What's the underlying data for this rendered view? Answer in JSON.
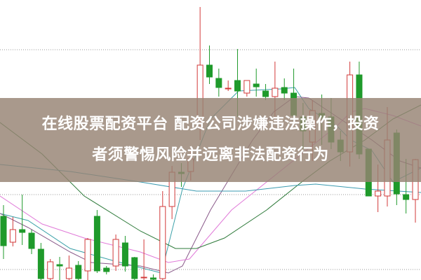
{
  "headline": {
    "line1": "在线股票配资平台 配资公司涉嫌违法操作，投资",
    "line2": "者须警惕风险并远离非法配资行为"
  },
  "chart_data": {
    "type": "candlestick",
    "title": "",
    "xlabel": "",
    "ylabel": "",
    "ylim": [
      0,
      400
    ],
    "grid": "horizontal dotted",
    "legend": "none",
    "colors": {
      "up": "#d23a3a",
      "down": "#1f9a2b",
      "ma_short": "#3aa0a8",
      "ma_mid": "#8a5a8a",
      "ma_long": "#e07ad8",
      "ma_60": "#2e7a3a",
      "ma_120": "#3a9ab0"
    },
    "candles": [
      {
        "o": 91,
        "h": 107,
        "l": 30,
        "c": 49
      },
      {
        "o": 54,
        "h": 90,
        "l": 48,
        "c": 72
      },
      {
        "o": 72,
        "h": 122,
        "l": 50,
        "c": 68
      },
      {
        "o": 67,
        "h": 72,
        "l": 37,
        "c": 45
      },
      {
        "o": 44,
        "h": 53,
        "l": 0,
        "c": 2
      },
      {
        "o": 2,
        "h": 30,
        "l": 0,
        "c": 26
      },
      {
        "o": 22,
        "h": 33,
        "l": 0,
        "c": 20
      },
      {
        "o": 2,
        "h": 35,
        "l": 0,
        "c": 17
      },
      {
        "o": 21,
        "h": 27,
        "l": 0,
        "c": 2
      },
      {
        "o": 13,
        "h": 60,
        "l": 0,
        "c": 58
      },
      {
        "o": 91,
        "h": 100,
        "l": 10,
        "c": 13
      },
      {
        "o": 17,
        "h": 20,
        "l": 8,
        "c": 12
      },
      {
        "o": 20,
        "h": 65,
        "l": 13,
        "c": 58
      },
      {
        "o": 53,
        "h": 63,
        "l": 12,
        "c": 20
      },
      {
        "o": 32,
        "h": 33,
        "l": 0,
        "c": 2
      },
      {
        "o": 3,
        "h": 58,
        "l": 0,
        "c": 4
      },
      {
        "o": 3,
        "h": 8,
        "l": 0,
        "c": 1
      },
      {
        "o": 2,
        "h": 127,
        "l": 0,
        "c": 105
      },
      {
        "o": 105,
        "h": 163,
        "l": 87,
        "c": 154
      },
      {
        "o": 154,
        "h": 167,
        "l": 133,
        "c": 152
      },
      {
        "o": 155,
        "h": 187,
        "l": 142,
        "c": 173
      },
      {
        "o": 230,
        "h": 390,
        "l": 200,
        "c": 307
      },
      {
        "o": 307,
        "h": 335,
        "l": 280,
        "c": 290
      },
      {
        "o": 288,
        "h": 302,
        "l": 262,
        "c": 275
      },
      {
        "o": 274,
        "h": 285,
        "l": 270,
        "c": 274
      },
      {
        "o": 285,
        "h": 330,
        "l": 233,
        "c": 270
      },
      {
        "o": 267,
        "h": 285,
        "l": 262,
        "c": 285
      },
      {
        "o": 280,
        "h": 302,
        "l": 262,
        "c": 276
      },
      {
        "o": 270,
        "h": 280,
        "l": 257,
        "c": 262
      },
      {
        "o": 262,
        "h": 312,
        "l": 230,
        "c": 274
      },
      {
        "o": 275,
        "h": 288,
        "l": 257,
        "c": 267
      },
      {
        "o": 267,
        "h": 302,
        "l": 227,
        "c": 235
      },
      {
        "o": 233,
        "h": 253,
        "l": 187,
        "c": 213
      },
      {
        "o": 197,
        "h": 257,
        "l": 170,
        "c": 242
      },
      {
        "o": 238,
        "h": 265,
        "l": 193,
        "c": 232
      },
      {
        "o": 233,
        "h": 260,
        "l": 187,
        "c": 197
      },
      {
        "o": 200,
        "h": 213,
        "l": 170,
        "c": 183
      },
      {
        "o": 183,
        "h": 312,
        "l": 162,
        "c": 293
      },
      {
        "o": 293,
        "h": 312,
        "l": 173,
        "c": 180
      },
      {
        "o": 187,
        "h": 187,
        "l": 120,
        "c": 120
      },
      {
        "o": 120,
        "h": 165,
        "l": 97,
        "c": 127
      },
      {
        "o": 120,
        "h": 247,
        "l": 105,
        "c": 200
      },
      {
        "o": 210,
        "h": 215,
        "l": 107,
        "c": 123
      },
      {
        "o": 122,
        "h": 173,
        "l": 95,
        "c": 115
      },
      {
        "o": 115,
        "h": 173,
        "l": 82,
        "c": 172
      }
    ],
    "moving_averages": [
      {
        "key": "ma_short",
        "points": [
          [
            0,
            95
          ],
          [
            40,
            85
          ],
          [
            100,
            45
          ],
          [
            160,
            28
          ],
          [
            230,
            10
          ],
          [
            260,
            130
          ],
          [
            300,
            230
          ],
          [
            340,
            270
          ],
          [
            400,
            273
          ],
          [
            420,
            275
          ],
          [
            440,
            245
          ],
          [
            480,
            220
          ],
          [
            500,
            200
          ],
          [
            530,
            185
          ],
          [
            560,
            140
          ],
          [
            600,
            160
          ]
        ]
      },
      {
        "key": "ma_mid",
        "points": [
          [
            0,
            95
          ],
          [
            40,
            75
          ],
          [
            100,
            40
          ],
          [
            130,
            25
          ],
          [
            200,
            20
          ],
          [
            240,
            10
          ],
          [
            260,
            20
          ],
          [
            300,
            100
          ],
          [
            360,
            200
          ],
          [
            390,
            240
          ],
          [
            420,
            262
          ],
          [
            440,
            260
          ],
          [
            470,
            240
          ],
          [
            500,
            220
          ],
          [
            530,
            200
          ],
          [
            570,
            170
          ],
          [
            600,
            160
          ]
        ]
      },
      {
        "key": "ma_long",
        "points": [
          [
            0,
            120
          ],
          [
            60,
            80
          ],
          [
            120,
            60
          ],
          [
            200,
            40
          ],
          [
            240,
            25
          ],
          [
            270,
            30
          ],
          [
            330,
            100
          ],
          [
            380,
            140
          ],
          [
            430,
            180
          ],
          [
            480,
            220
          ],
          [
            500,
            240
          ],
          [
            520,
            245
          ],
          [
            560,
            235
          ],
          [
            600,
            220
          ]
        ]
      },
      {
        "key": "ma_60",
        "points": [
          [
            0,
            225
          ],
          [
            60,
            180
          ],
          [
            120,
            120
          ],
          [
            200,
            70
          ],
          [
            250,
            45
          ],
          [
            280,
            45
          ],
          [
            320,
            60
          ],
          [
            380,
            100
          ],
          [
            430,
            140
          ],
          [
            470,
            170
          ],
          [
            520,
            200
          ],
          [
            560,
            230
          ],
          [
            600,
            250
          ]
        ]
      },
      {
        "key": "ma_120",
        "points": [
          [
            0,
            165
          ],
          [
            100,
            155
          ],
          [
            200,
            140
          ],
          [
            280,
            127
          ],
          [
            350,
            127
          ],
          [
            420,
            135
          ],
          [
            450,
            137
          ],
          [
            520,
            130
          ],
          [
            600,
            125
          ]
        ]
      }
    ]
  }
}
